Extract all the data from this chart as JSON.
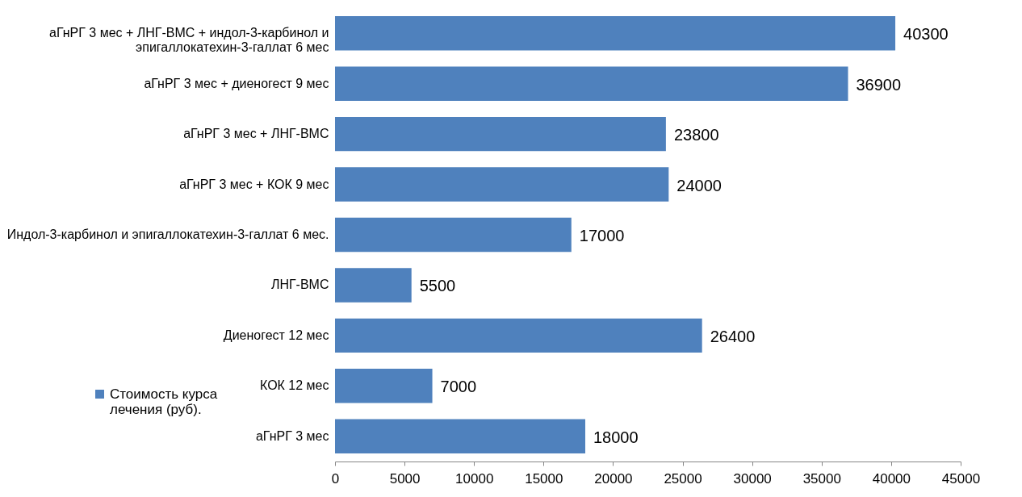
{
  "chart_data": {
    "type": "bar",
    "orientation": "horizontal",
    "categories": [
      "аГнРГ 3 мес + ЛНГ-ВМС + индол-3-карбинол и эпигаллокатехин-3-галлат 6 мес",
      "аГнРГ 3 мес + диеногест 9 мес",
      "аГнРГ 3 мес + ЛНГ-ВМС",
      "аГнРГ 3 мес + КОК 9 мес",
      "Индол-3-карбинол и эпигаллокатехин-3-галлат 6 мес.",
      "ЛНГ-ВМС",
      "Диеногест 12 мес",
      "КОК 12 мес",
      "аГнРГ 3 мес"
    ],
    "series": [
      {
        "name": "Стоимость курса лечения (руб).",
        "color": "#4f81bd",
        "values": [
          40300,
          36900,
          23800,
          24000,
          17000,
          5500,
          26400,
          7000,
          18000
        ]
      }
    ],
    "xlim": [
      0,
      45000
    ],
    "xticks": [
      0,
      5000,
      10000,
      15000,
      20000,
      25000,
      30000,
      35000,
      40000,
      45000
    ],
    "data_labels": true,
    "grid": false,
    "legend": "bottom left"
  }
}
